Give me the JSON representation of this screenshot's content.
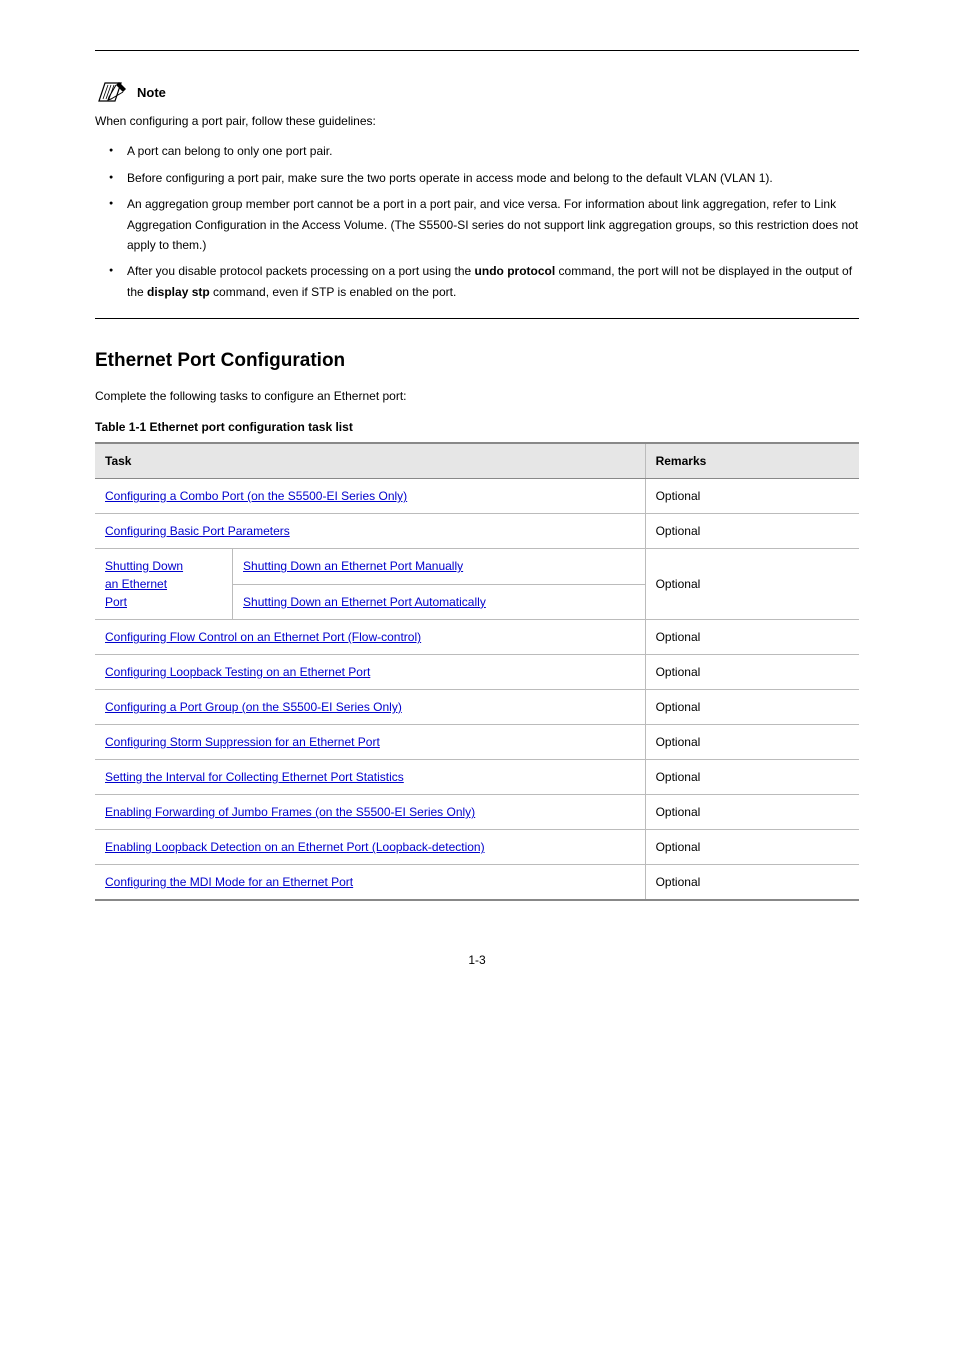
{
  "note": {
    "label": "Note",
    "intro": "When configuring a port pair, follow these guidelines:",
    "bullets": [
      {
        "text": "A port can belong to only one port pair."
      },
      {
        "text": "Before configuring a port pair, make sure the two ports operate in access mode and belong to the default VLAN (VLAN 1)."
      },
      {
        "html": "An aggregation group member port cannot be a port in a port pair, and vice versa. For information about link aggregation, refer to <span class=\"arg\">Link Aggregation Configuration</span> in the <span class=\"arg\">Access Volume</span>. (The S5500-SI series do not support link aggregation groups, so this restriction does not apply to them.)"
      },
      {
        "html": "After you disable protocol packets processing on a port using the <span class=\"cmd\">undo protocol</span> command, the port will not be displayed in the output of the <span class=\"cmd\">display stp</span> command, even if STP is enabled on the port."
      }
    ]
  },
  "section": {
    "heading": "Ethernet Port Configuration",
    "intro": "Complete the following tasks to configure an Ethernet port:",
    "tableCaption": "Table 1-1 Ethernet port configuration task list",
    "headers": [
      "Task",
      "Remarks"
    ],
    "rows": [
      {
        "task": [
          {
            "link": "Configuring a Combo Port (on the S5500-EI Series Only)"
          }
        ],
        "remark": "Optional"
      },
      {
        "task": [
          {
            "link": "Configuring Basic Port Parameters"
          }
        ],
        "remark": "Optional"
      },
      {
        "task": [
          {
            "text": "Shutting Down an Ethernet Port",
            "sublinks": [
              "Shutting Down an Ethernet Port Manually",
              "Shutting Down an Ethernet Port Automatically"
            ]
          }
        ],
        "remark": "Optional",
        "nested": true
      },
      {
        "task": [
          {
            "link": "Configuring Flow Control on an Ethernet Port (Flow-control)"
          }
        ],
        "remark": "Optional"
      },
      {
        "task": [
          {
            "link": "Configuring Loopback Testing on an Ethernet Port"
          }
        ],
        "remark": "Optional"
      },
      {
        "task": [
          {
            "link": "Configuring a Port Group (on the S5500-EI Series Only)"
          }
        ],
        "remark": "Optional"
      },
      {
        "task": [
          {
            "link": "Configuring Storm Suppression for an Ethernet Port"
          }
        ],
        "remark": "Optional"
      },
      {
        "task": [
          {
            "link": "Setting the Interval for Collecting Ethernet Port Statistics"
          }
        ],
        "remark": "Optional"
      },
      {
        "task": [
          {
            "link": "Enabling Forwarding of Jumbo Frames (on the S5500-EI Series Only)"
          }
        ],
        "remark": "Optional"
      },
      {
        "task": [
          {
            "link": "Enabling Loopback Detection on an Ethernet Port (Loopback-detection)"
          }
        ],
        "remark": "Optional"
      },
      {
        "task": [
          {
            "link": "Configuring the MDI Mode for an Ethernet Port"
          }
        ],
        "remark": "Optional"
      }
    ],
    "nestedLeft": [
      "Shutting Down",
      "an Ethernet",
      "Port"
    ],
    "nestedRight": [
      "Shutting Down an Ethernet Port Manually",
      "Shutting Down an Ethernet Port Automatically"
    ]
  },
  "pageNumber": "1-3"
}
